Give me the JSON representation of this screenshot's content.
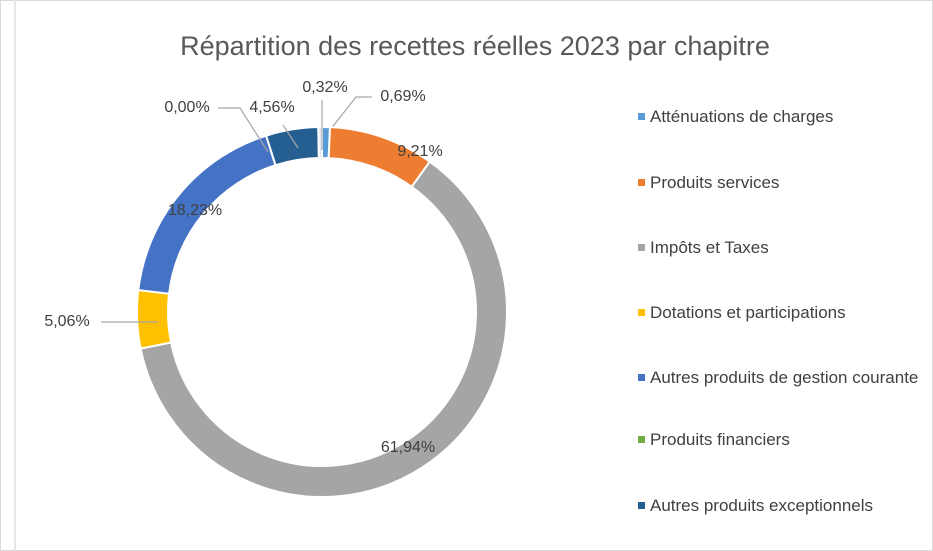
{
  "chart_data": {
    "type": "pie",
    "donut": true,
    "title": "Répartition des recettes réelles 2023 par chapitre",
    "categories": [
      "Atténuations de charges",
      "Produits services",
      "Impôts et Taxes",
      "Dotations et participations",
      "Autres produits de gestion courante",
      "Produits financiers",
      "Autres produits exceptionnels",
      null
    ],
    "values": [
      0.69,
      9.21,
      61.94,
      5.06,
      18.23,
      0.0,
      4.56,
      0.32
    ],
    "value_labels": [
      "0,69%",
      "9,21%",
      "61,94%",
      "5,06%",
      "18,23%",
      "0,00%",
      "4,56%",
      "0,32%"
    ],
    "colors": [
      "#5b9bd5",
      "#ed7d31",
      "#a5a5a5",
      "#ffc000",
      "#4472c4",
      "#70ad47",
      "#255e91",
      "#dce6f2"
    ],
    "legend": "right"
  }
}
